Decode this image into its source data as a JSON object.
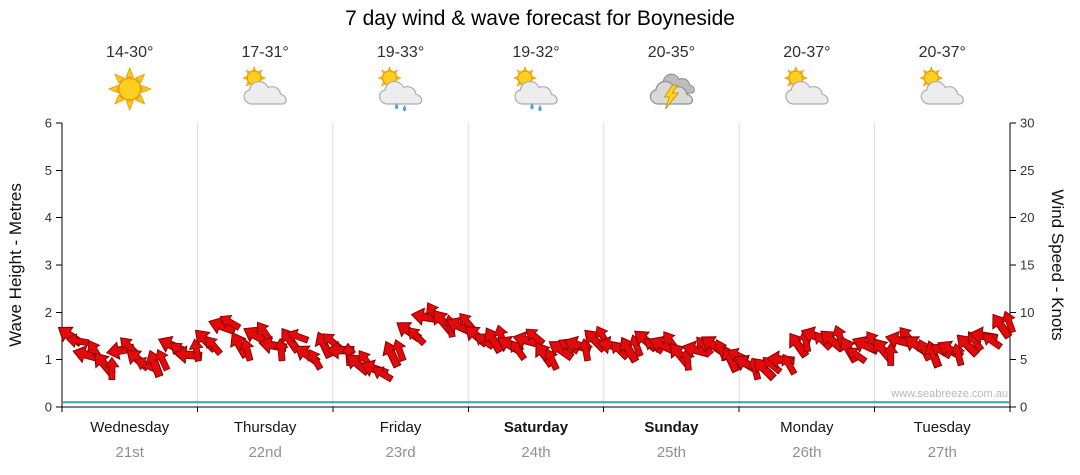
{
  "title": "7 day wind & wave forecast for Boyneside",
  "watermark": "www.seabreeze.com.au",
  "axes": {
    "left_title": "Wave Height - Metres",
    "right_title": "Wind Speed - Knots",
    "left_ticks": [
      0,
      1,
      2,
      3,
      4,
      5,
      6
    ],
    "right_ticks": [
      0,
      5,
      10,
      15,
      20,
      25,
      30
    ]
  },
  "days": [
    {
      "name": "Wednesday",
      "date": "21st",
      "temp": "14-30°",
      "icon": "sunny",
      "bold": false
    },
    {
      "name": "Thursday",
      "date": "22nd",
      "temp": "17-31°",
      "icon": "sun-cloud",
      "bold": false
    },
    {
      "name": "Friday",
      "date": "23rd",
      "temp": "19-33°",
      "icon": "sun-cloud-rain",
      "bold": false
    },
    {
      "name": "Saturday",
      "date": "24th",
      "temp": "19-32°",
      "icon": "sun-cloud-rain",
      "bold": true
    },
    {
      "name": "Sunday",
      "date": "25th",
      "temp": "20-35°",
      "icon": "storm",
      "bold": true
    },
    {
      "name": "Monday",
      "date": "26th",
      "temp": "20-37°",
      "icon": "sun-cloud",
      "bold": false
    },
    {
      "name": "Tuesday",
      "date": "27th",
      "temp": "20-37°",
      "icon": "sun-cloud",
      "bold": false
    }
  ],
  "chart_data": {
    "type": "scatter",
    "series_name": "Wind speed shown as red direction arrows",
    "x_unit": "3-hourly steps across 7 days",
    "categories_days": [
      "Wednesday 21st",
      "Thursday 22nd",
      "Friday 23rd",
      "Saturday 24th",
      "Sunday 25th",
      "Monday 26th",
      "Tuesday 27th"
    ],
    "points_per_day": 8,
    "ylim_left_metres": [
      0,
      6
    ],
    "ylim_right_knots": [
      0,
      30
    ],
    "wind_knots": [
      7.5,
      5.5,
      4.5,
      6,
      5,
      4.5,
      6.5,
      5.5,
      7,
      8.5,
      6.5,
      7.5,
      6.5,
      7,
      5.5,
      6.5,
      6,
      4.5,
      4,
      5.5,
      8,
      9.5,
      9,
      8.5,
      7.5,
      7,
      6.5,
      7,
      5.5,
      6,
      6.5,
      7,
      6.5,
      6,
      7,
      6.5,
      5.5,
      6,
      6.5,
      5,
      4.5,
      4,
      5,
      6.5,
      7.5,
      7,
      6,
      6.5,
      6,
      7,
      6.5,
      5.5,
      6,
      6.5,
      7.5,
      8.5
    ],
    "wind_direction_deg": [
      215,
      195,
      230,
      170,
      220,
      250,
      205,
      185,
      225,
      200,
      240,
      210,
      190,
      235,
      215,
      245,
      180,
      220,
      200,
      245,
      215,
      190,
      230,
      205,
      220,
      240,
      210,
      195,
      235,
      215,
      200,
      225,
      190,
      240,
      220,
      205,
      230,
      195,
      215,
      245,
      210,
      225,
      185,
      235,
      200,
      220,
      240,
      205,
      230,
      195,
      215,
      250,
      210,
      225,
      190,
      235
    ],
    "wave_baseline_m": 0.1,
    "marker_color": "#e20a0a",
    "marker_outline": "#8a0000",
    "baseline_color": "#2FA8A8",
    "grid": "vertical day separators only",
    "legend": "none"
  }
}
